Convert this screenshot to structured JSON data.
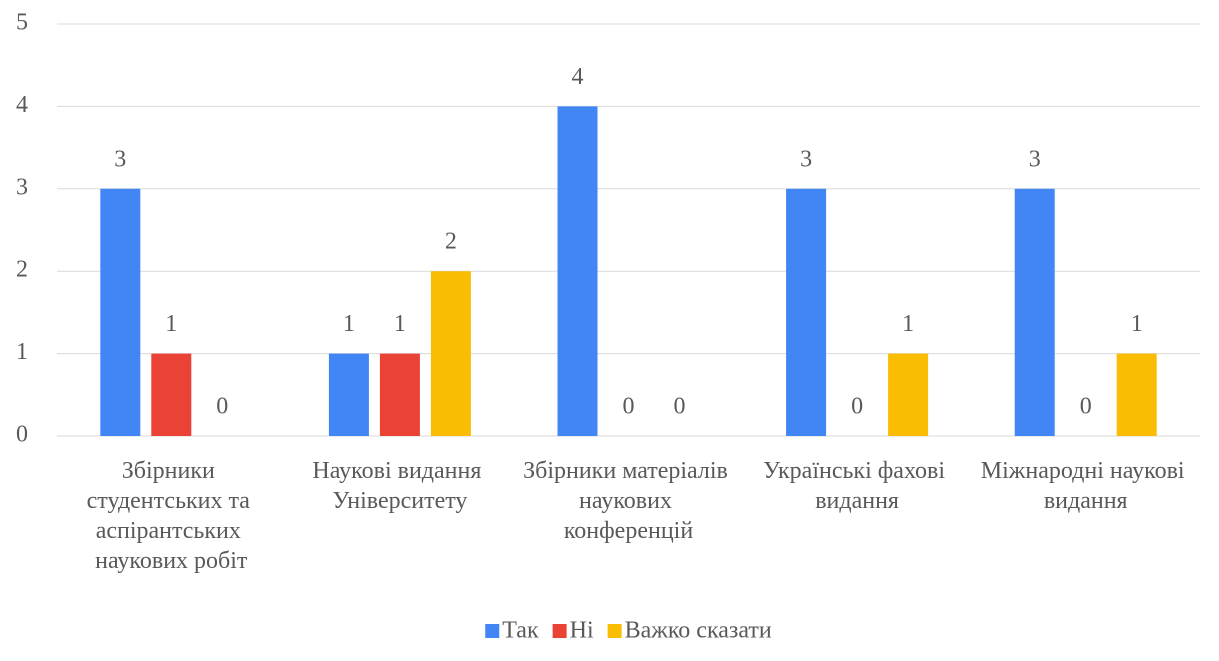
{
  "chart_data": {
    "type": "bar",
    "categories": [
      "Збірники студентських та аспірантських наукових робіт",
      "Наукові видання Університету",
      "Збірники матеріалів наукових конференцій",
      "Українські фахові видання",
      "Міжнародні наукові видання"
    ],
    "series": [
      {
        "name": "Так",
        "color": "#4285f4",
        "values": [
          3,
          1,
          4,
          3,
          3
        ]
      },
      {
        "name": "Ні",
        "color": "#ea4335",
        "values": [
          1,
          1,
          0,
          0,
          0
        ]
      },
      {
        "name": "Важко сказати",
        "color": "#fbbc04",
        "values": [
          0,
          2,
          0,
          1,
          1
        ]
      }
    ],
    "ylim": [
      0,
      5
    ],
    "yticks": [
      0,
      1,
      2,
      3,
      4,
      5
    ],
    "grid": true,
    "legend": "bottom"
  }
}
